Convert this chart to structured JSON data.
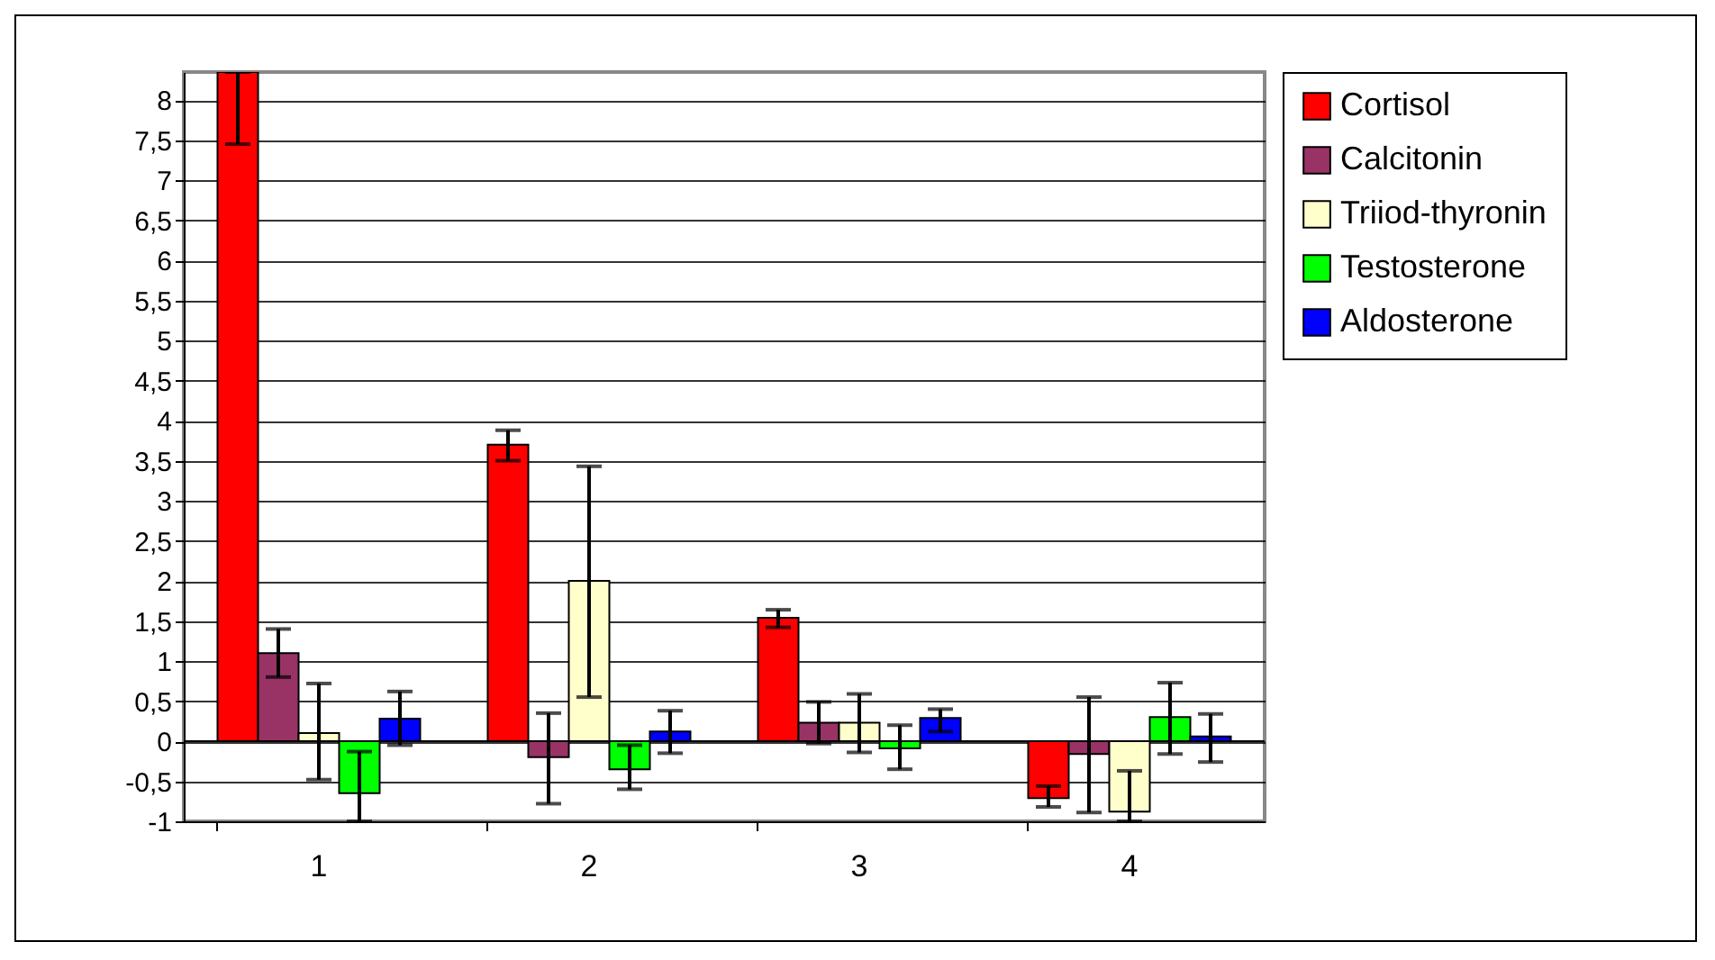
{
  "chart_data": {
    "type": "bar",
    "categories": [
      "1",
      "2",
      "3",
      "4"
    ],
    "series": [
      {
        "name": "Cortisol",
        "color": "#ff0000",
        "values": [
          8.35,
          3.7,
          1.54,
          -0.71
        ],
        "errors": [
          [
            7.45,
            8.35
          ],
          [
            3.5,
            3.88
          ],
          [
            1.42,
            1.64
          ],
          [
            -0.82,
            -0.56
          ]
        ]
      },
      {
        "name": "Calcitonin",
        "color": "#993366",
        "values": [
          1.1,
          -0.2,
          0.23,
          -0.16
        ],
        "errors": [
          [
            0.8,
            1.4
          ],
          [
            -0.78,
            0.35
          ],
          [
            -0.03,
            0.49
          ],
          [
            -0.89,
            0.55
          ]
        ]
      },
      {
        "name": "Triiod-thyronin",
        "color": "#ffffcc",
        "values": [
          0.1,
          2.0,
          0.23,
          -0.88
        ],
        "errors": [
          [
            -0.48,
            0.72
          ],
          [
            0.55,
            3.43
          ],
          [
            -0.14,
            0.59
          ],
          [
            -1,
            -0.37
          ]
        ]
      },
      {
        "name": "Testosterone",
        "color": "#00ff00",
        "values": [
          -0.65,
          -0.35,
          -0.09,
          0.3
        ],
        "errors": [
          [
            -1,
            -0.13
          ],
          [
            -0.6,
            -0.05
          ],
          [
            -0.35,
            0.2
          ],
          [
            -0.16,
            0.73
          ]
        ]
      },
      {
        "name": "Aldosterone",
        "color": "#0000ff",
        "values": [
          0.28,
          0.12,
          0.29,
          0.06
        ],
        "errors": [
          [
            -0.05,
            0.62
          ],
          [
            -0.15,
            0.38
          ],
          [
            0.12,
            0.4
          ],
          [
            -0.26,
            0.34
          ]
        ]
      }
    ],
    "ylim": [
      -1,
      8.35
    ],
    "yticks": [
      -1,
      {
        "value": -0.5,
        "label": "-0,5"
      },
      0,
      {
        "value": 0.5,
        "label": "0,5"
      },
      1,
      {
        "value": 1.5,
        "label": "1,5"
      },
      2,
      {
        "value": 2.5,
        "label": "2,5"
      },
      3,
      {
        "value": 3.5,
        "label": "3,5"
      },
      4,
      {
        "value": 4.5,
        "label": "4,5"
      },
      5,
      {
        "value": 5.5,
        "label": "5,5"
      },
      6,
      {
        "value": 6.5,
        "label": "6,5"
      },
      7,
      {
        "value": 7.5,
        "label": "7,5"
      },
      8
    ],
    "ref_lines": [
      {
        "axis": "y",
        "value": 0,
        "color": "#000000"
      }
    ],
    "grid": "y",
    "legend": "right"
  }
}
